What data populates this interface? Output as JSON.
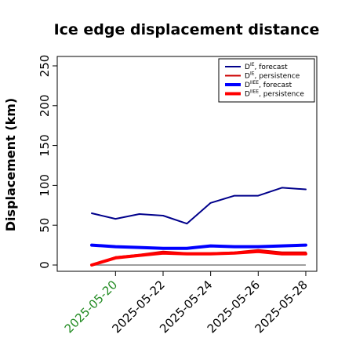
{
  "chart_data": {
    "type": "line",
    "title": "Ice edge displacement distance",
    "ylabel": "Displacement (km)",
    "xlabel": "",
    "ylim": [
      0,
      255
    ],
    "yticks": [
      0,
      50,
      100,
      150,
      200,
      250
    ],
    "x": [
      "2025-05-19",
      "2025-05-20",
      "2025-05-21",
      "2025-05-22",
      "2025-05-23",
      "2025-05-24",
      "2025-05-25",
      "2025-05-26",
      "2025-05-27",
      "2025-05-28"
    ],
    "xtick_labels": [
      {
        "date": "2025-05-20",
        "label": "2025-05-20",
        "color": "#228b22"
      },
      {
        "date": "2025-05-22",
        "label": "2025-05-22",
        "color": "#000000"
      },
      {
        "date": "2025-05-24",
        "label": "2025-05-24",
        "color": "#000000"
      },
      {
        "date": "2025-05-26",
        "label": "2025-05-26",
        "color": "#000000"
      },
      {
        "date": "2025-05-28",
        "label": "2025-05-28",
        "color": "#000000"
      }
    ],
    "baseline": 0,
    "series": [
      {
        "name": "D^IE, forecast",
        "color": "#00008b",
        "width": 2,
        "values": [
          65,
          58,
          64,
          62,
          52,
          78,
          87,
          87,
          97,
          95
        ]
      },
      {
        "name": "D^IE, persistence",
        "color": "#cc0000",
        "width": 2,
        "values": [
          0,
          10,
          13,
          17,
          15,
          15,
          16,
          19,
          16,
          16
        ]
      },
      {
        "name": "D^IIEE, forecast",
        "color": "#0000ff",
        "width": 4,
        "values": [
          25,
          23,
          22,
          21,
          21,
          24,
          23,
          23,
          24,
          25
        ]
      },
      {
        "name": "D^IIEE, persistence",
        "color": "#ff0000",
        "width": 4,
        "values": [
          0,
          9,
          12,
          15,
          14,
          14,
          15,
          17,
          14,
          14
        ]
      }
    ],
    "legend": {
      "position": "top-right",
      "entries": [
        {
          "base": "D",
          "sup": "IE",
          "rest": ", forecast",
          "color": "#00008b",
          "width": 2
        },
        {
          "base": "D",
          "sup": "IE",
          "rest": ", persistence",
          "color": "#cc0000",
          "width": 2
        },
        {
          "base": "D",
          "sup": "IIEE",
          "rest": ", forecast",
          "color": "#0000ff",
          "width": 4
        },
        {
          "base": "D",
          "sup": "IIEE",
          "rest": ", persistence",
          "color": "#ff0000",
          "width": 4
        }
      ]
    }
  }
}
